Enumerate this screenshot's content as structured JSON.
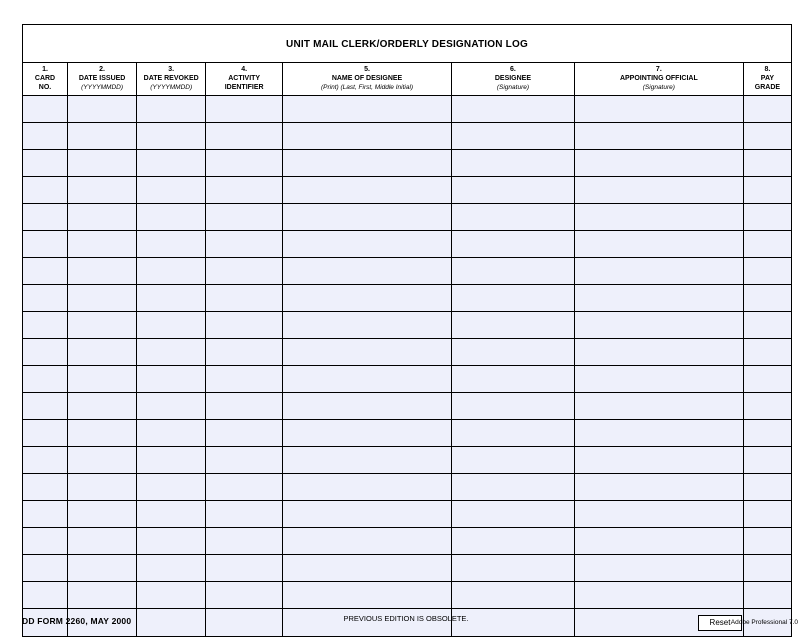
{
  "title": "UNIT MAIL CLERK/ORDERLY DESIGNATION LOG",
  "columns": [
    {
      "num": "1.",
      "label": "CARD\nNO.",
      "sub": "",
      "width": "5.8%"
    },
    {
      "num": "2.",
      "label": "DATE ISSUED",
      "sub": "(YYYYMMDD)",
      "width": "9%"
    },
    {
      "num": "3.",
      "label": "DATE REVOKED",
      "sub": "(YYYYMMDD)",
      "width": "9%"
    },
    {
      "num": "4.",
      "label": "ACTIVITY\nIDENTIFIER",
      "sub": "",
      "width": "10%"
    },
    {
      "num": "5.",
      "label": "NAME OF DESIGNEE",
      "sub": "(Print) (Last, First, Middle Initial)",
      "width": "22%"
    },
    {
      "num": "6.",
      "label": "DESIGNEE",
      "sub": "(Signature)",
      "width": "16%"
    },
    {
      "num": "7.",
      "label": "APPOINTING OFFICIAL",
      "sub": "(Signature)",
      "width": "22%"
    },
    {
      "num": "8.",
      "label": "PAY\nGRADE",
      "sub": "",
      "width": "6.2%"
    }
  ],
  "row_count": 20,
  "row_background_color": "#eef0fb",
  "footer": {
    "form_id": "DD FORM 2260, MAY 2000",
    "obsolete": "PREVIOUS EDITION IS OBSOLETE.",
    "app": "Adobe Professional 7.0",
    "reset_label": "Reset"
  }
}
